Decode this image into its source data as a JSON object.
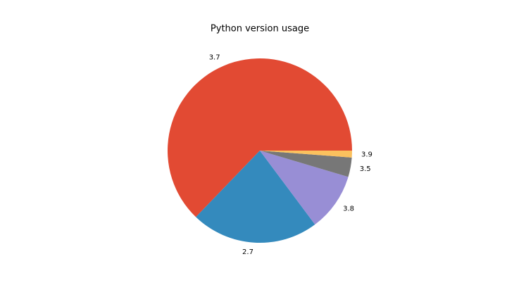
{
  "chart_data": {
    "type": "pie",
    "title": "Python version usage",
    "categories": [
      "3.7",
      "2.7",
      "3.8",
      "3.5",
      "3.9"
    ],
    "values": [
      62.8,
      22.4,
      10.2,
      3.4,
      1.2
    ],
    "colors": [
      "#E24A33",
      "#348ABD",
      "#988ED5",
      "#777777",
      "#FBC15E"
    ]
  }
}
